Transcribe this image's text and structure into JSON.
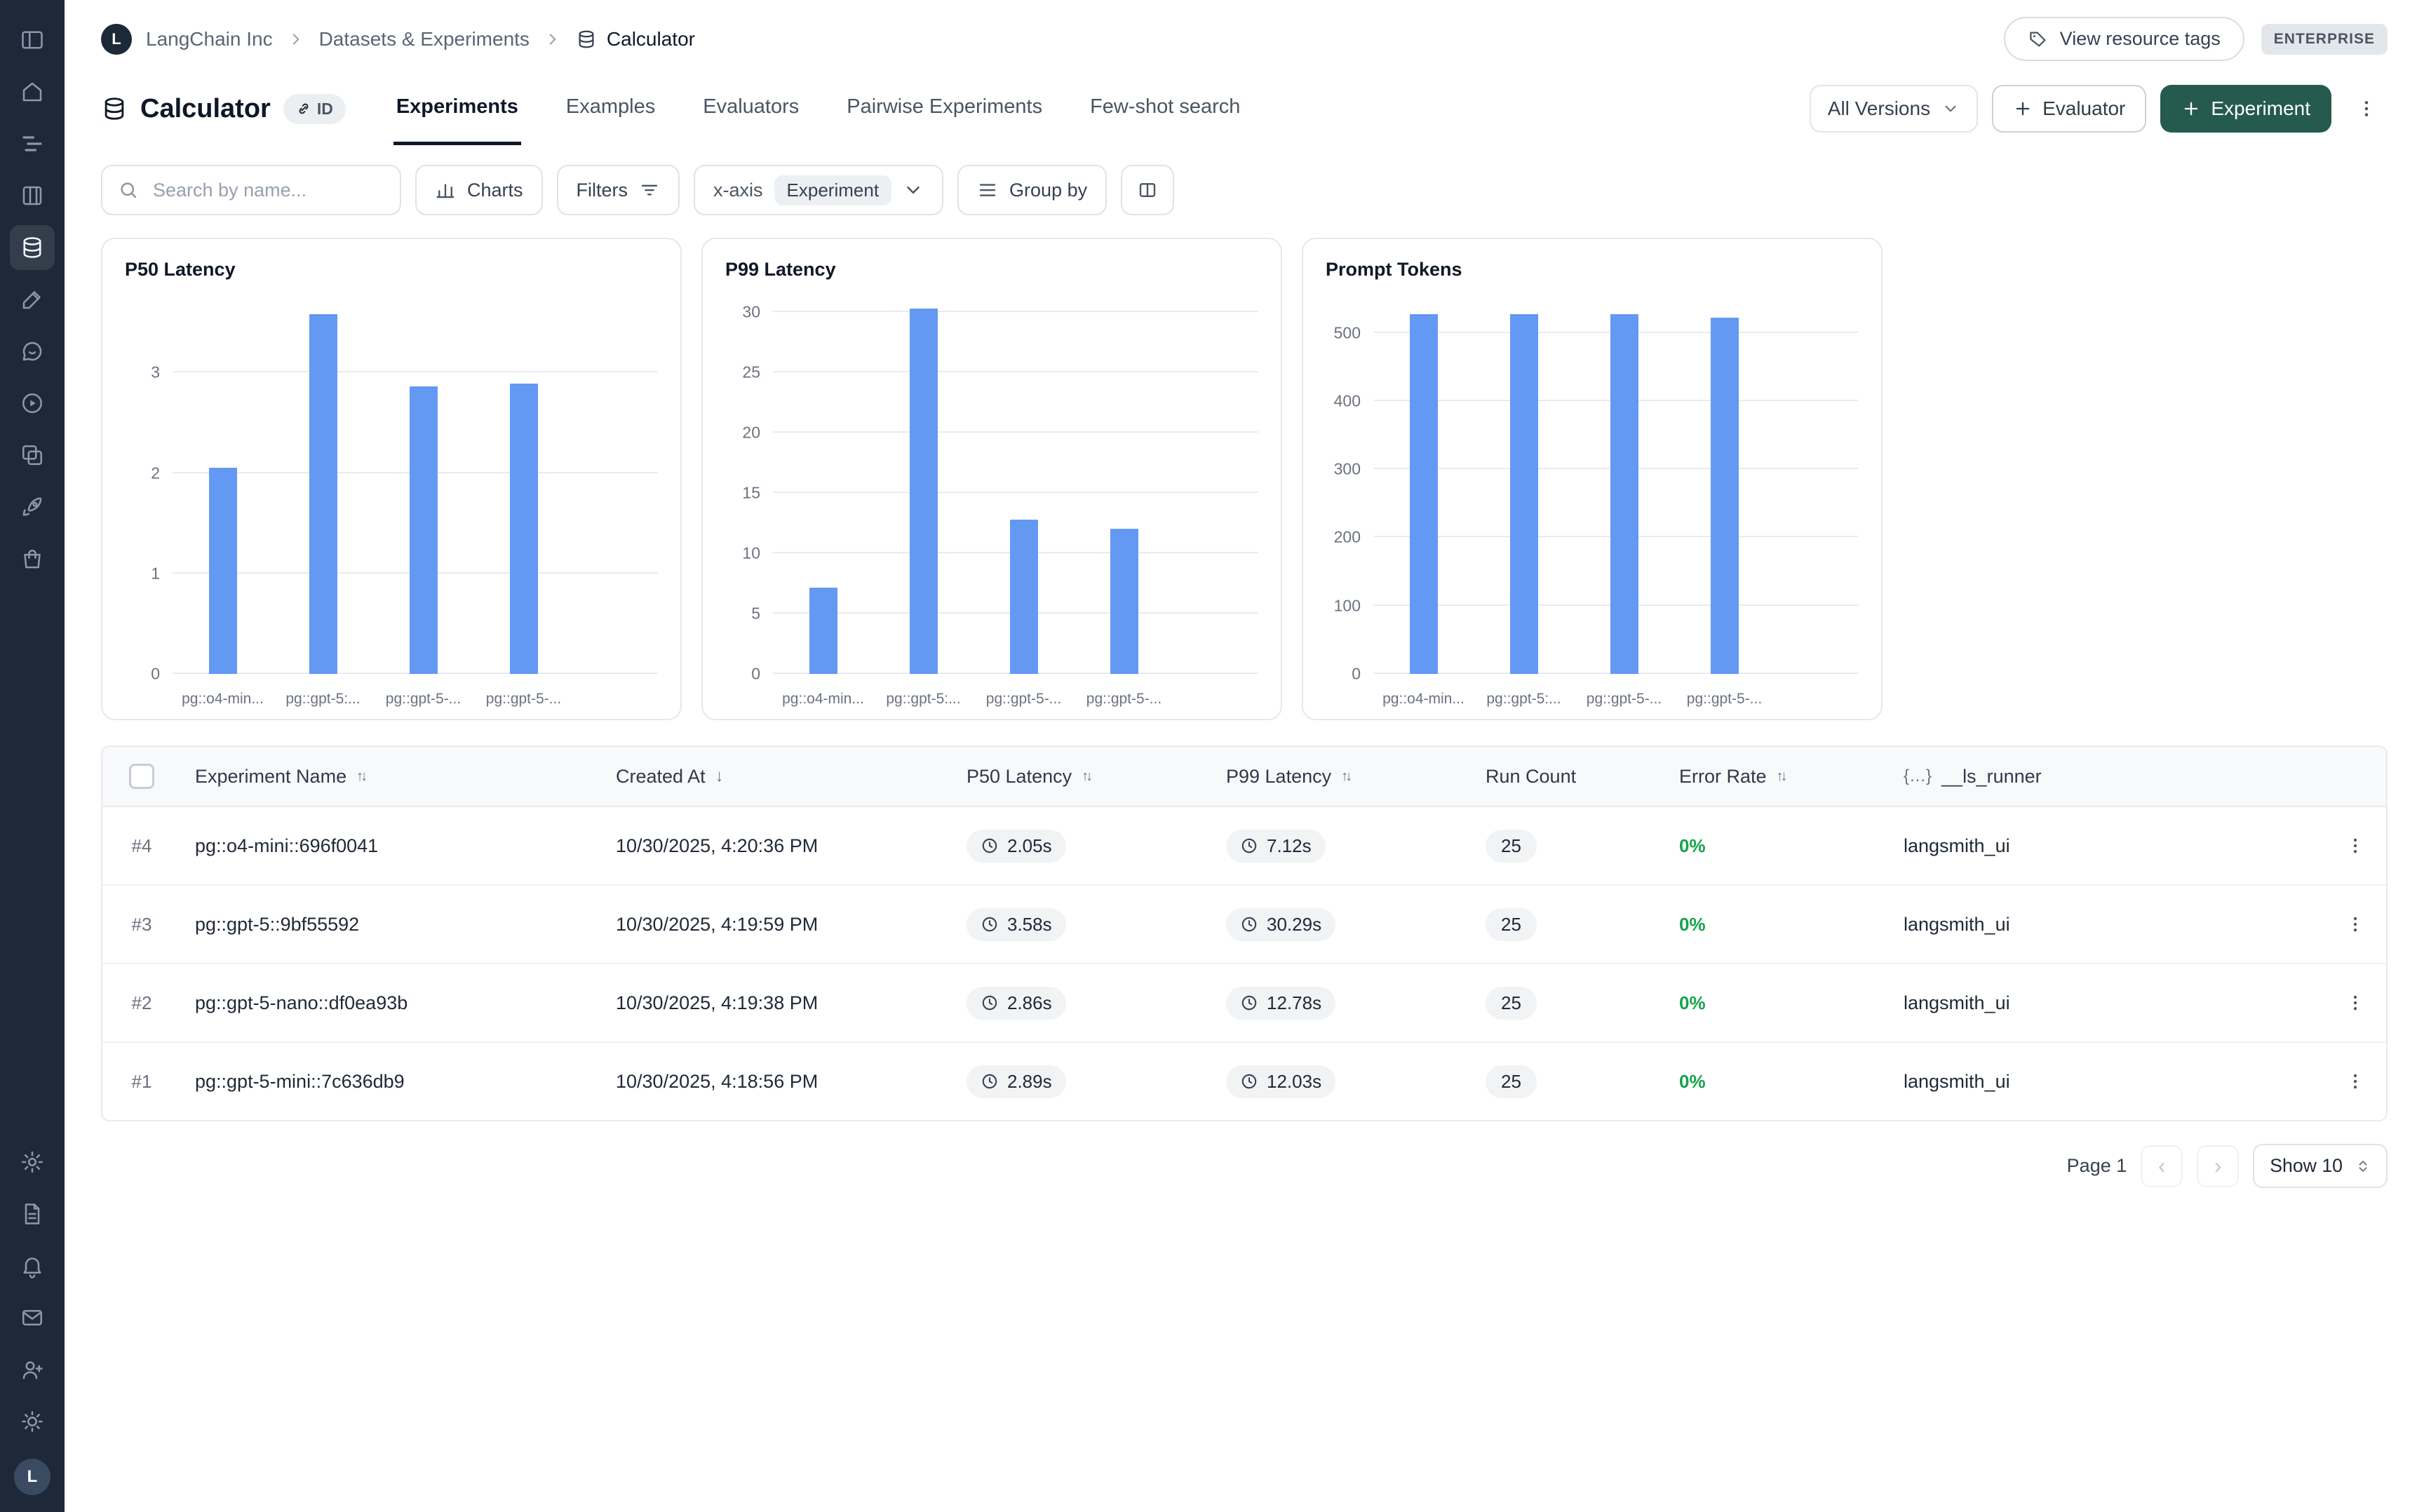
{
  "colors": {
    "sidebar_bg": "#1d2838",
    "accent_green": "#255a4e",
    "bar_blue": "#6499f3",
    "error_ok_green": "#16a34a"
  },
  "sidebar": {
    "top_icons": [
      "sidebar-toggle",
      "home",
      "tracing-projects",
      "projects",
      "datasets",
      "annotation-queues",
      "chat",
      "playground",
      "dashboards",
      "deployments",
      "hub"
    ],
    "active_icon": "datasets",
    "bottom_icons": [
      "settings",
      "docs",
      "notifications",
      "mail",
      "invite-user",
      "theme"
    ],
    "avatar_letter": "L"
  },
  "breadcrumb": {
    "org_initial": "L",
    "org": "LangChain Inc",
    "section": "Datasets & Experiments",
    "page": "Calculator"
  },
  "topbar": {
    "view_resource_tags": "View resource tags",
    "plan_badge": "ENTERPRISE"
  },
  "header": {
    "title": "Calculator",
    "id_chip": "ID",
    "tabs": [
      {
        "label": "Experiments",
        "active": true
      },
      {
        "label": "Examples",
        "active": false
      },
      {
        "label": "Evaluators",
        "active": false
      },
      {
        "label": "Pairwise Experiments",
        "active": false
      },
      {
        "label": "Few-shot search",
        "active": false
      }
    ],
    "versions_dropdown": "All Versions",
    "evaluator_button": "Evaluator",
    "experiment_button": "Experiment"
  },
  "toolbar": {
    "search_placeholder": "Search by name...",
    "charts_button": "Charts",
    "filters_button": "Filters",
    "xaxis_label": "x-axis",
    "xaxis_value": "Experiment",
    "group_by_button": "Group by"
  },
  "chart_data": [
    {
      "type": "bar",
      "title": "P50 Latency",
      "categories": [
        "pg::o4-min...",
        "pg::gpt-5:...",
        "pg::gpt-5-...",
        "pg::gpt-5-..."
      ],
      "values": [
        2.05,
        3.58,
        2.86,
        2.89
      ],
      "yticks": [
        0,
        1,
        2,
        3
      ],
      "ylim": [
        0,
        3.75
      ],
      "unit": "s",
      "grid": true,
      "bar_color": "#6499f3"
    },
    {
      "type": "bar",
      "title": "P99 Latency",
      "categories": [
        "pg::o4-min...",
        "pg::gpt-5:...",
        "pg::gpt-5-...",
        "pg::gpt-5-..."
      ],
      "values": [
        7.12,
        30.29,
        12.78,
        12.03
      ],
      "yticks": [
        0,
        5,
        10,
        15,
        20,
        25,
        30
      ],
      "ylim": [
        0,
        31.2
      ],
      "unit": "s",
      "grid": true,
      "bar_color": "#6499f3"
    },
    {
      "type": "bar",
      "title": "Prompt Tokens",
      "categories": [
        "pg::o4-min...",
        "pg::gpt-5:...",
        "pg::gpt-5-...",
        "pg::gpt-5-..."
      ],
      "values": [
        527,
        527,
        527,
        522
      ],
      "yticks": [
        0,
        100,
        200,
        300,
        400,
        500
      ],
      "ylim": [
        0,
        552
      ],
      "unit": "",
      "grid": true,
      "bar_color": "#6499f3"
    }
  ],
  "table": {
    "columns": [
      {
        "label": "Experiment Name",
        "sort_icon": "↑↓"
      },
      {
        "label": "Created At",
        "sort_icon": "↓"
      },
      {
        "label": "P50 Latency",
        "sort_icon": "↑↓"
      },
      {
        "label": "P99 Latency",
        "sort_icon": "↑↓"
      },
      {
        "label": "Run Count",
        "sort_icon": ""
      },
      {
        "label": "Error Rate",
        "sort_icon": "↑↓"
      },
      {
        "label": "__ls_runner",
        "sort_icon": "",
        "prefix_icon": "{…}"
      }
    ],
    "rows": [
      {
        "index": "#4",
        "name": "pg::o4-mini::696f0041",
        "created_at": "10/30/2025, 4:20:36 PM",
        "p50": "2.05s",
        "p99": "7.12s",
        "run_count": "25",
        "error_rate": "0%",
        "runner": "langsmith_ui"
      },
      {
        "index": "#3",
        "name": "pg::gpt-5::9bf55592",
        "created_at": "10/30/2025, 4:19:59 PM",
        "p50": "3.58s",
        "p99": "30.29s",
        "run_count": "25",
        "error_rate": "0%",
        "runner": "langsmith_ui"
      },
      {
        "index": "#2",
        "name": "pg::gpt-5-nano::df0ea93b",
        "created_at": "10/30/2025, 4:19:38 PM",
        "p50": "2.86s",
        "p99": "12.78s",
        "run_count": "25",
        "error_rate": "0%",
        "runner": "langsmith_ui"
      },
      {
        "index": "#1",
        "name": "pg::gpt-5-mini::7c636db9",
        "created_at": "10/30/2025, 4:18:56 PM",
        "p50": "2.89s",
        "p99": "12.03s",
        "run_count": "25",
        "error_rate": "0%",
        "runner": "langsmith_ui"
      }
    ]
  },
  "pagination": {
    "page_label": "Page 1",
    "prev_glyph": "‹",
    "next_glyph": "›",
    "show_label": "Show 10"
  }
}
